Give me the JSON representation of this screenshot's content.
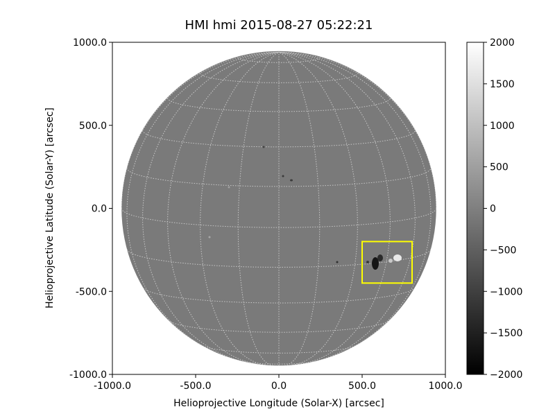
{
  "chart_data": {
    "type": "heatmap",
    "title": "HMI hmi 2015-08-27 05:22:21",
    "xlabel": "Helioprojective Longitude (Solar-X) [arcsec]",
    "ylabel": "Helioprojective Latitude (Solar-Y) [arcsec]",
    "xlim": [
      -1000,
      1000
    ],
    "ylim": [
      -1000,
      1000
    ],
    "x_ticks": [
      {
        "value": -1000,
        "label": "-1000.0"
      },
      {
        "value": -500,
        "label": "-500.0"
      },
      {
        "value": 0,
        "label": "0.0"
      },
      {
        "value": 500,
        "label": "500.0"
      },
      {
        "value": 1000,
        "label": "1000.0"
      }
    ],
    "y_ticks": [
      {
        "value": 1000,
        "label": "1000.0"
      },
      {
        "value": 500,
        "label": "500.0"
      },
      {
        "value": 0,
        "label": "0.0"
      },
      {
        "value": -500,
        "label": "-500.0"
      },
      {
        "value": -1000,
        "label": "-1000.0"
      }
    ],
    "solar_radius_arcsec": 945,
    "grid": true,
    "grid_color": "#c8c8c8",
    "disk_color": "#7a7a7a",
    "colormap": "gray",
    "colorbar": {
      "range": [
        -2000,
        2000
      ],
      "ticks": [
        {
          "value": 2000,
          "label": "2000"
        },
        {
          "value": 1500,
          "label": "1500"
        },
        {
          "value": 1000,
          "label": "1000"
        },
        {
          "value": 500,
          "label": "500"
        },
        {
          "value": 0,
          "label": "0"
        },
        {
          "value": -500,
          "label": "−500"
        },
        {
          "value": -1000,
          "label": "−1000"
        },
        {
          "value": -1500,
          "label": "−1500"
        },
        {
          "value": -2000,
          "label": "−2000"
        }
      ]
    },
    "highlight_box": {
      "x_range": [
        500,
        800
      ],
      "y_range": [
        -450,
        -200
      ],
      "color": "#ffff00"
    }
  }
}
